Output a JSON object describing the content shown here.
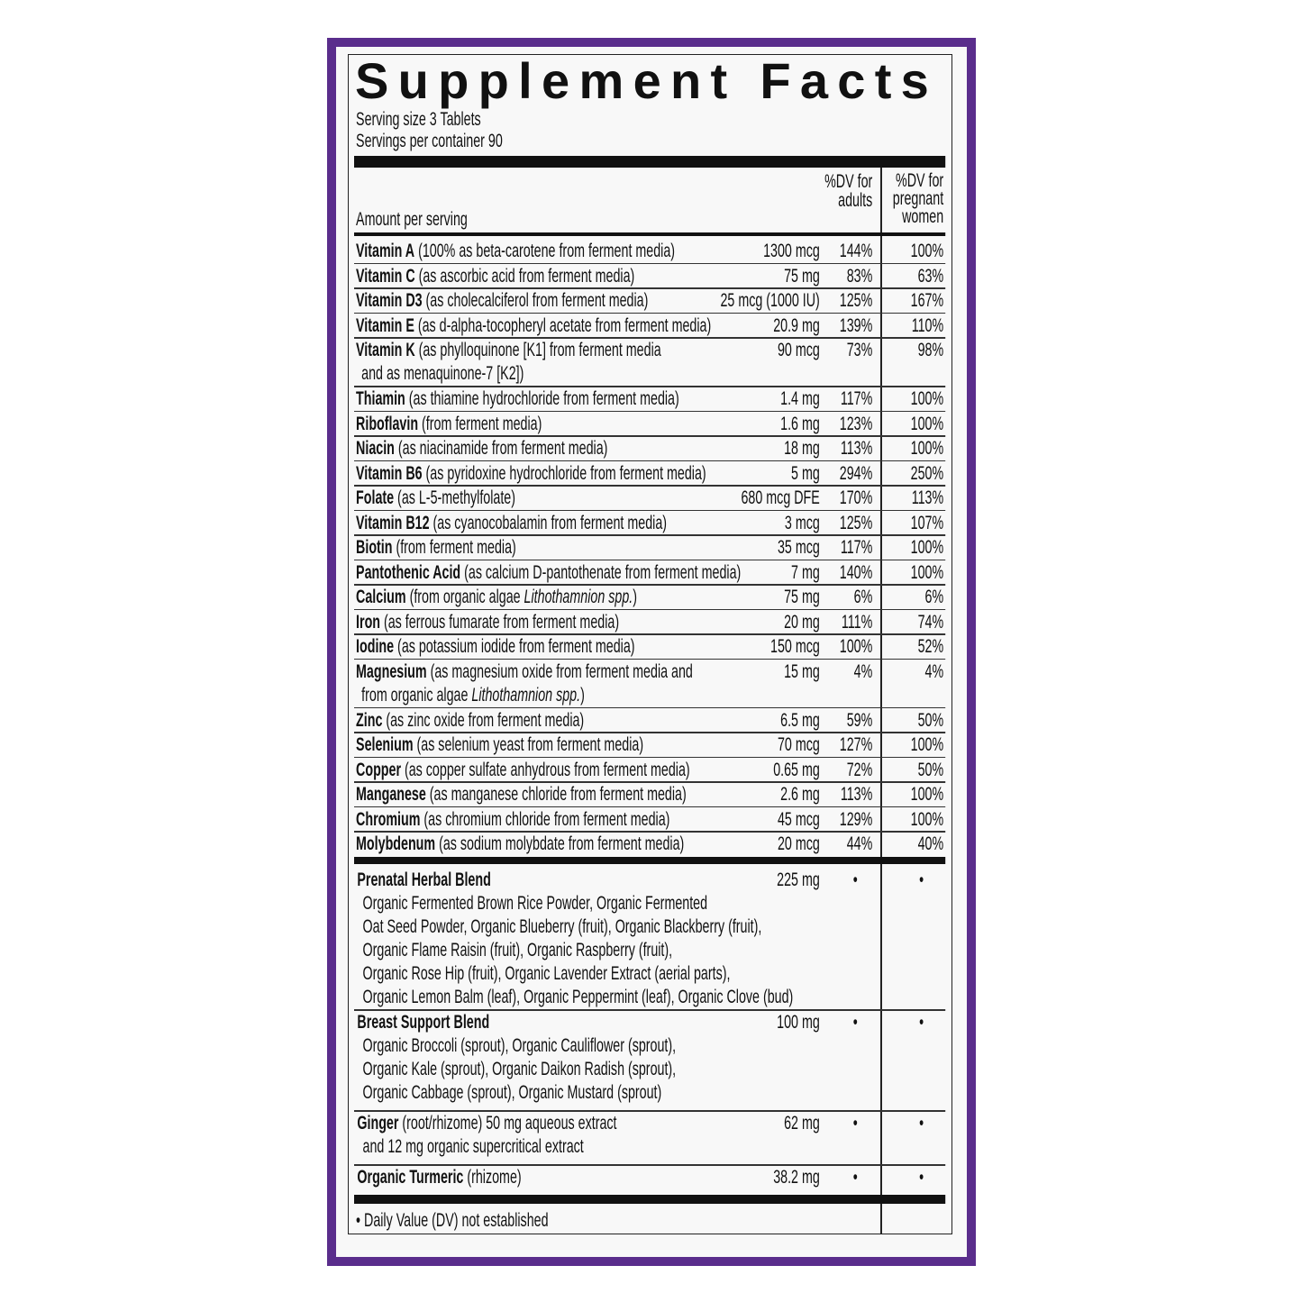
{
  "title": "Supplement Facts",
  "colors": {
    "frame": "#5a2d8c",
    "text": "#111111"
  },
  "serving_size": "Serving size 3 Tablets",
  "servings_per_container": "Servings per container 90",
  "header": {
    "amount_per_serving": "Amount per serving",
    "dv_adults": [
      "%DV for",
      "adults"
    ],
    "dv_pregnant": [
      "%DV for",
      "pregnant",
      "women"
    ]
  },
  "nutrients": [
    {
      "name": "Vitamin A",
      "desc": " (100% as beta-carotene from ferment media)",
      "amount": "1300 mcg",
      "dv_adults": "144%",
      "dv_pregnant": "100%"
    },
    {
      "name": "Vitamin C",
      "desc": " (as ascorbic acid from ferment media)",
      "amount": "75 mg",
      "dv_adults": "83%",
      "dv_pregnant": "63%"
    },
    {
      "name": "Vitamin D3",
      "desc": " (as cholecalciferol from ferment media)",
      "amount": "25 mcg (1000 IU)",
      "dv_adults": "125%",
      "dv_pregnant": "167%"
    },
    {
      "name": "Vitamin E",
      "desc": " (as d-alpha-tocopheryl acetate from ferment media)",
      "amount": "20.9 mg",
      "dv_adults": "139%",
      "dv_pregnant": "110%"
    },
    {
      "name": "Vitamin K",
      "desc": " (as phylloquinone [K1] from ferment media",
      "line2": "and as menaquinone-7 [K2])",
      "amount": "90 mcg",
      "dv_adults": "73%",
      "dv_pregnant": "98%"
    },
    {
      "name": "Thiamin",
      "desc": " (as thiamine hydrochloride from ferment media)",
      "amount": "1.4 mg",
      "dv_adults": "117%",
      "dv_pregnant": "100%"
    },
    {
      "name": "Riboflavin",
      "desc": " (from ferment media)",
      "amount": "1.6 mg",
      "dv_adults": "123%",
      "dv_pregnant": "100%"
    },
    {
      "name": "Niacin",
      "desc": " (as niacinamide from ferment media)",
      "amount": "18 mg",
      "dv_adults": "113%",
      "dv_pregnant": "100%"
    },
    {
      "name": "Vitamin B6",
      "desc": " (as pyridoxine hydrochloride from ferment media)",
      "amount": "5 mg",
      "dv_adults": "294%",
      "dv_pregnant": "250%"
    },
    {
      "name": "Folate",
      "desc": " (as L-5-methylfolate)",
      "amount": "680 mcg DFE",
      "dv_adults": "170%",
      "dv_pregnant": "113%"
    },
    {
      "name": "Vitamin B12",
      "desc": " (as cyanocobalamin from ferment media)",
      "amount": "3 mcg",
      "dv_adults": "125%",
      "dv_pregnant": "107%"
    },
    {
      "name": "Biotin",
      "desc": " (from ferment media)",
      "amount": "35 mcg",
      "dv_adults": "117%",
      "dv_pregnant": "100%"
    },
    {
      "name": "Pantothenic Acid",
      "desc": " (as calcium D-pantothenate from ferment media)",
      "amount": "7 mg",
      "dv_adults": "140%",
      "dv_pregnant": "100%"
    },
    {
      "name": "Calcium",
      "desc": " (from organic algae ",
      "italic": "Lithothamnion spp.",
      "desc_end": ")",
      "amount": "75 mg",
      "dv_adults": "6%",
      "dv_pregnant": "6%"
    },
    {
      "name": "Iron",
      "desc": " (as ferrous fumarate from ferment media)",
      "amount": "20 mg",
      "dv_adults": "111%",
      "dv_pregnant": "74%"
    },
    {
      "name": "Iodine",
      "desc": " (as potassium iodide from ferment media)",
      "amount": "150 mcg",
      "dv_adults": "100%",
      "dv_pregnant": "52%"
    },
    {
      "name": "Magnesium",
      "desc": " (as magnesium oxide from ferment media and",
      "line2": "from organic algae ",
      "line2_italic": "Lithothamnion spp.",
      "line2_end": ")",
      "amount": "15 mg",
      "dv_adults": "4%",
      "dv_pregnant": "4%"
    },
    {
      "name": "Zinc",
      "desc": " (as zinc oxide from ferment media)",
      "amount": "6.5 mg",
      "dv_adults": "59%",
      "dv_pregnant": "50%"
    },
    {
      "name": "Selenium",
      "desc": " (as selenium yeast from ferment media)",
      "amount": "70 mcg",
      "dv_adults": "127%",
      "dv_pregnant": "100%"
    },
    {
      "name": "Copper",
      "desc": " (as copper sulfate anhydrous from ferment media)",
      "amount": "0.65 mg",
      "dv_adults": "72%",
      "dv_pregnant": "50%"
    },
    {
      "name": "Manganese",
      "desc": " (as manganese chloride from ferment media)",
      "amount": "2.6 mg",
      "dv_adults": "113%",
      "dv_pregnant": "100%"
    },
    {
      "name": "Chromium",
      "desc": " (as chromium chloride from ferment media)",
      "amount": "45 mcg",
      "dv_adults": "129%",
      "dv_pregnant": "100%"
    },
    {
      "name": "Molybdenum",
      "desc": " (as sodium molybdate from ferment media)",
      "amount": "20 mcg",
      "dv_adults": "44%",
      "dv_pregnant": "40%"
    }
  ],
  "blends": [
    {
      "name": "Prenatal Herbal Blend",
      "desc": "",
      "amount": "225 mg",
      "dv_adults": "•",
      "dv_pregnant": "•",
      "lines": [
        "Organic Fermented Brown Rice Powder, Organic Fermented",
        "Oat Seed Powder,  Organic Blueberry (fruit), Organic Blackberry (fruit),",
        "Organic Flame Raisin (fruit), Organic Raspberry (fruit),",
        "Organic Rose Hip (fruit), Organic Lavender Extract (aerial parts),",
        "Organic Lemon Balm (leaf), Organic Peppermint (leaf), Organic Clove (bud)"
      ]
    },
    {
      "name": "Breast Support Blend",
      "desc": "",
      "amount": "100 mg",
      "dv_adults": "•",
      "dv_pregnant": "•",
      "lines": [
        "Organic Broccoli (sprout), Organic Cauliflower (sprout),",
        "Organic Kale (sprout), Organic Daikon Radish (sprout),",
        "Organic Cabbage (sprout), Organic Mustard (sprout)"
      ]
    },
    {
      "name": "Ginger",
      "desc": " (root/rhizome) 50 mg aqueous extract",
      "amount": "62 mg",
      "dv_adults": "•",
      "dv_pregnant": "•",
      "lines": [
        "and 12 mg organic supercritical extract"
      ]
    },
    {
      "name": "Organic Turmeric",
      "desc": " (rhizome)",
      "amount": "38.2 mg",
      "dv_adults": "•",
      "dv_pregnant": "•",
      "lines": []
    }
  ],
  "footnote": "• Daily Value (DV) not established"
}
